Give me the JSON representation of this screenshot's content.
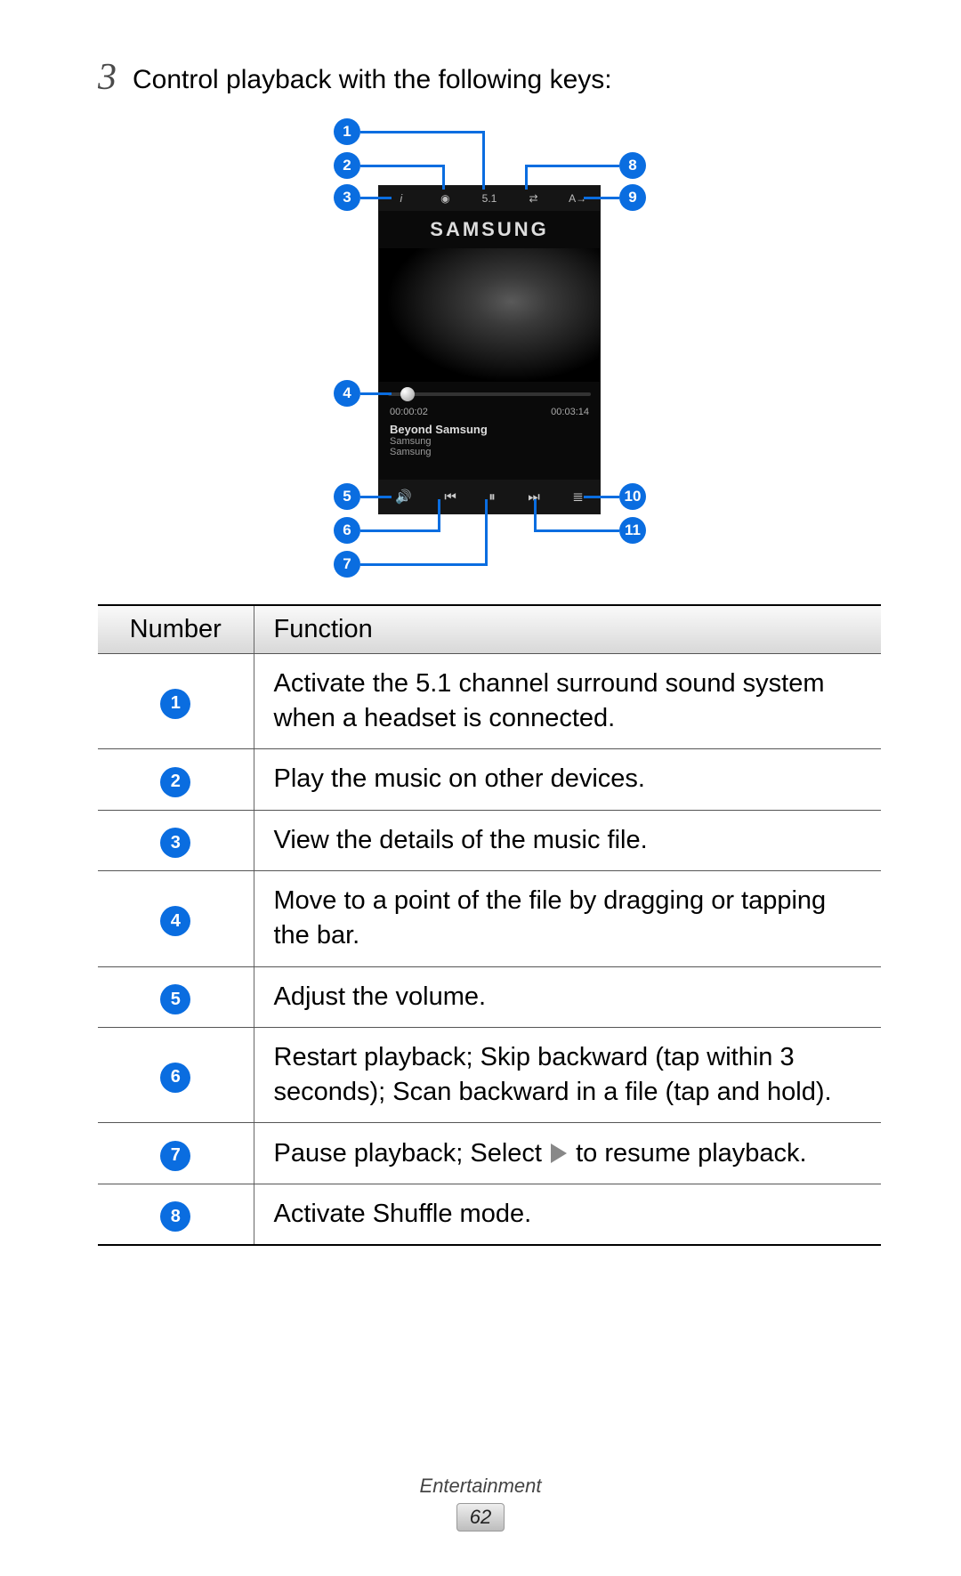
{
  "step": {
    "num": "3",
    "text": "Control playback with the following keys:"
  },
  "callouts": [
    "1",
    "2",
    "3",
    "4",
    "5",
    "6",
    "7",
    "8",
    "9",
    "10",
    "11"
  ],
  "phone": {
    "brand": "SAMSUNG",
    "time_elapsed": "00:00:02",
    "time_total": "00:03:14",
    "song_title": "Beyond Samsung",
    "song_artist": "Samsung",
    "song_album": "Samsung"
  },
  "table": {
    "head_num": "Number",
    "head_func": "Function",
    "rows": [
      {
        "n": "1",
        "f": "Activate the 5.1 channel surround sound system when a headset is connected."
      },
      {
        "n": "2",
        "f": "Play the music on other devices."
      },
      {
        "n": "3",
        "f": "View the details of the music file."
      },
      {
        "n": "4",
        "f": "Move to a point of the file by dragging or tapping the bar."
      },
      {
        "n": "5",
        "f": "Adjust the volume."
      },
      {
        "n": "6",
        "f": "Restart playback; Skip backward (tap within 3 seconds); Scan backward in a file (tap and hold)."
      },
      {
        "n": "7",
        "f_pre": "Pause playback; Select ",
        "f_post": " to resume playback.",
        "icon": "play"
      },
      {
        "n": "8",
        "f": "Activate Shuffle mode."
      }
    ]
  },
  "footer": {
    "section": "Entertainment",
    "page": "62"
  },
  "colors": {
    "accent": "#0a6de0"
  }
}
